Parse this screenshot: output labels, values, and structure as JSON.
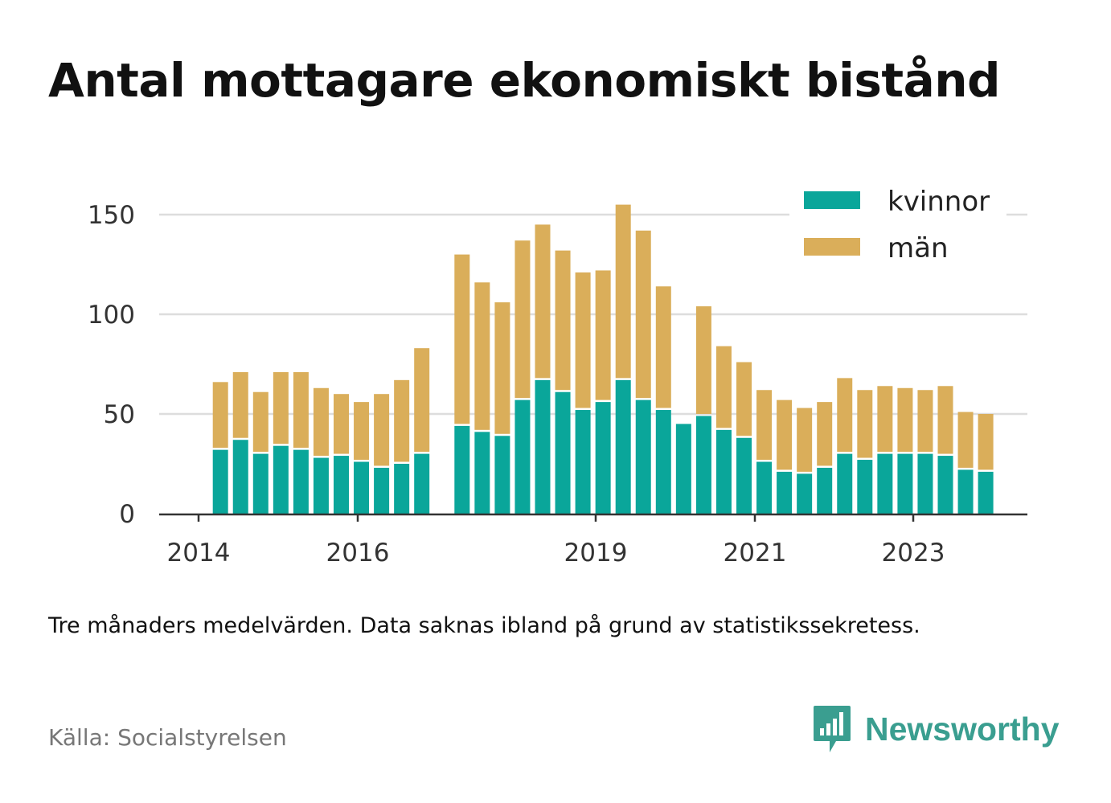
{
  "title": "Antal mottagare ekonomiskt bistånd",
  "note": "Tre månaders medelvärden. Data saknas ibland på grund av statistikssekretess.",
  "source": "Källa: Socialstyrelsen",
  "brand": "Newsworthy",
  "colors": {
    "kvinnor": "#0aa69a",
    "man": "#daae5a",
    "grid": "#dddddd",
    "axis": "#333333"
  },
  "chart_data": {
    "type": "bar",
    "stacked": true,
    "x_ticks": [
      "2014",
      "2016",
      "2019",
      "2021",
      "2023"
    ],
    "y_ticks": [
      0,
      50,
      100,
      150
    ],
    "ylim": [
      0,
      160
    ],
    "grid": true,
    "legend_position": "top-right",
    "legend": [
      "kvinnor",
      "män"
    ],
    "periods": [
      "2014 Q2",
      "2014 Q3",
      "2014 Q4",
      "2015 Q1",
      "2015 Q2",
      "2015 Q3",
      "2015 Q4",
      "2016 Q1",
      "2016 Q2",
      "2016 Q3",
      "2016 Q4",
      "2017 Q1",
      "2017 Q2",
      "2017 Q3",
      "2017 Q4",
      "2018 Q1",
      "2018 Q2",
      "2018 Q3",
      "2018 Q4",
      "2019 Q1",
      "2019 Q2",
      "2019 Q3",
      "2019 Q4",
      "2020 Q1",
      "2020 Q2",
      "2020 Q3",
      "2020 Q4",
      "2021 Q1",
      "2021 Q2",
      "2021 Q3",
      "2021 Q4",
      "2022 Q1",
      "2022 Q2",
      "2022 Q3",
      "2022 Q4",
      "2023 Q1",
      "2023 Q2",
      "2023 Q3",
      "2023 Q4",
      "2024 Q1"
    ],
    "series": [
      {
        "name": "kvinnor",
        "values": [
          32,
          37,
          30,
          34,
          32,
          28,
          29,
          26,
          23,
          25,
          30,
          null,
          44,
          41,
          39,
          57,
          67,
          61,
          52,
          56,
          67,
          57,
          52,
          45,
          49,
          42,
          38,
          26,
          21,
          20,
          23,
          30,
          27,
          30,
          30,
          30,
          29,
          22,
          21,
          null
        ]
      },
      {
        "name": "män",
        "values": [
          34,
          34,
          31,
          37,
          39,
          35,
          31,
          30,
          37,
          42,
          53,
          null,
          86,
          75,
          67,
          80,
          78,
          71,
          69,
          66,
          88,
          85,
          62,
          0,
          55,
          42,
          38,
          36,
          36,
          33,
          33,
          38,
          35,
          34,
          33,
          32,
          35,
          29,
          29,
          null
        ]
      }
    ]
  }
}
